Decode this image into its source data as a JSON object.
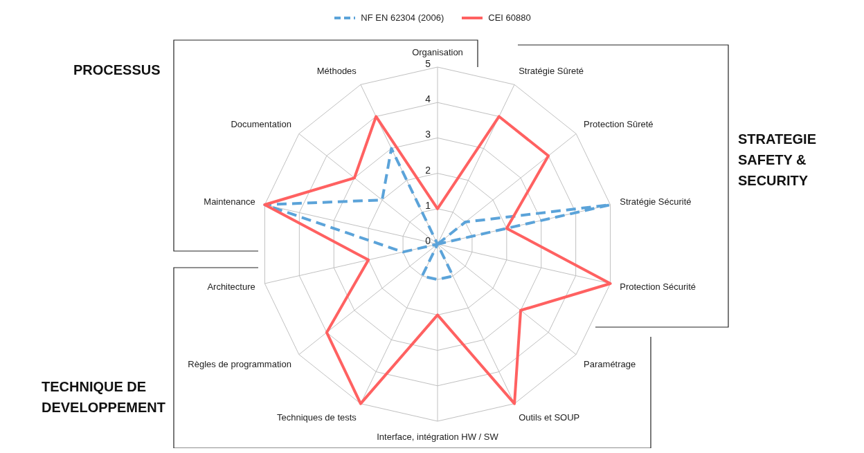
{
  "chart_data": {
    "type": "radar",
    "categories": [
      "Organisation",
      "Stratégie Sûreté",
      "Protection Sûreté",
      "Stratégie Sécurité",
      "Protection Sécurité",
      "Paramétrage",
      "Outils et SOUP",
      "Interface, intégration HW / SW",
      "Techniques de tests",
      "Règles de programmation",
      "Architecture",
      "Maintenance",
      "Documentation",
      "Méthodes"
    ],
    "series": [
      {
        "name": "NF EN 62304 (2006)",
        "color": "#5ba3d9",
        "line_style": "dashed",
        "values": [
          0,
          0,
          1,
          5,
          0,
          0,
          1,
          1,
          1,
          0,
          1,
          5,
          2,
          3
        ]
      },
      {
        "name": "CEI 60880",
        "color": "#ff6161",
        "line_style": "solid",
        "values": [
          1,
          4,
          4,
          2,
          5,
          3,
          5,
          2,
          5,
          4,
          2,
          5,
          3,
          4
        ]
      }
    ],
    "ylim": [
      0,
      5
    ],
    "yticks": [
      0,
      1,
      2,
      3,
      4,
      5
    ],
    "grid": true,
    "legend": "top",
    "marker": "none",
    "annotations": [
      "PROCESSUS",
      "STRATEGIE SAFETY & SECURITY",
      "TECHNIQUE DE DEVELOPPEMENT"
    ]
  }
}
